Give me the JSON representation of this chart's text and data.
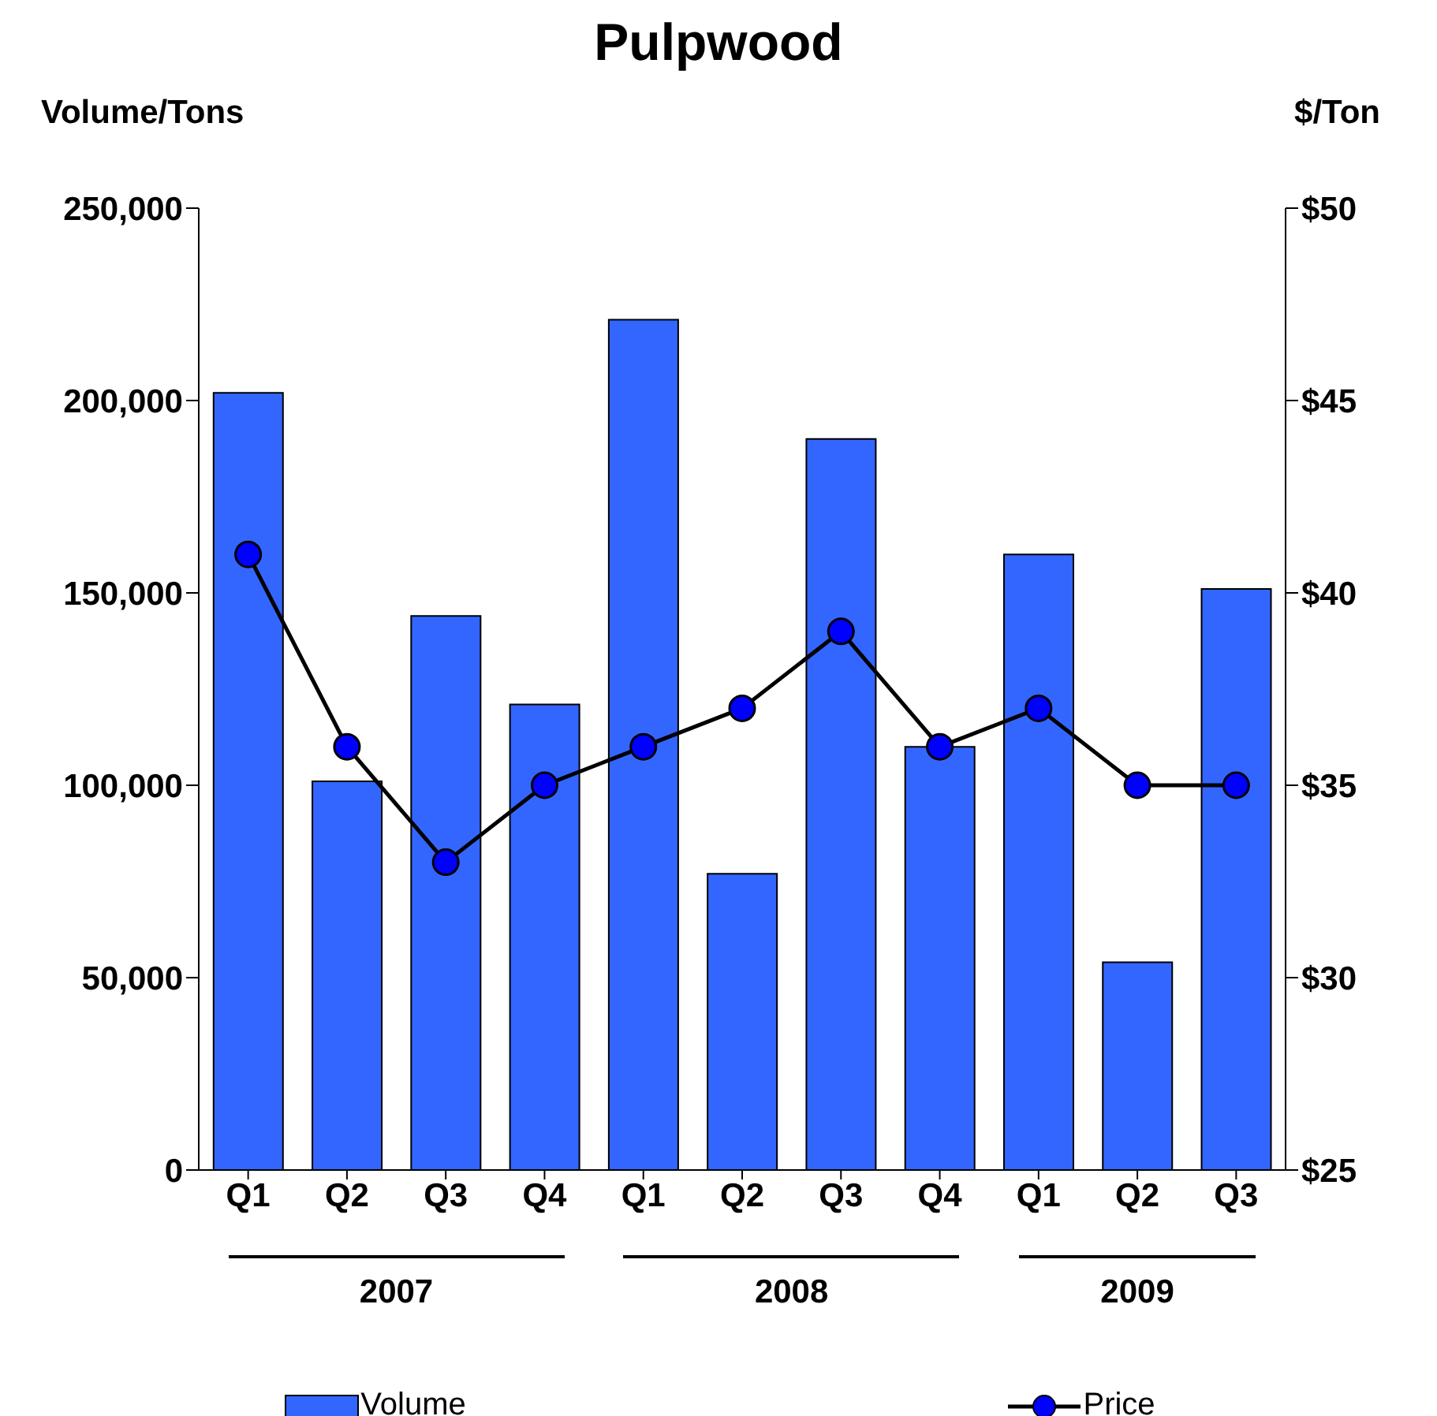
{
  "chart_data": {
    "type": "bar",
    "title": "Pulpwood",
    "ylabel": "Volume/Tons",
    "y2label": "$/Ton",
    "categories": [
      "Q1",
      "Q2",
      "Q3",
      "Q4",
      "Q1",
      "Q2",
      "Q3",
      "Q4",
      "Q1",
      "Q2",
      "Q3"
    ],
    "annotations": [
      "2007",
      "2008",
      "2009"
    ],
    "series": [
      {
        "name": "Volume",
        "color": "#3366ff",
        "values": [
          202000,
          101000,
          144000,
          121000,
          221000,
          77000,
          190000,
          110000,
          160000,
          54000,
          151000
        ]
      },
      {
        "name": "Price",
        "type": "line",
        "axis": "y2",
        "color": "#000000",
        "marker": "circle",
        "values": [
          41,
          36,
          33,
          35,
          36,
          37,
          39,
          36,
          37,
          35,
          35
        ]
      }
    ],
    "ylim": [
      0,
      250000
    ],
    "yticks": [
      {
        "value": 0,
        "label": "0"
      },
      {
        "value": 50000,
        "label": "50,000"
      },
      {
        "value": 100000,
        "label": "100,000"
      },
      {
        "value": 150000,
        "label": "150,000"
      },
      {
        "value": 200000,
        "label": "200,000"
      },
      {
        "value": 250000,
        "label": "250,000"
      }
    ],
    "y2lim": [
      25,
      50
    ],
    "y2ticks": [
      {
        "value": 25,
        "label": "$25"
      },
      {
        "value": 30,
        "label": "$30"
      },
      {
        "value": 35,
        "label": "$35"
      },
      {
        "value": 40,
        "label": "$40"
      },
      {
        "value": 45,
        "label": "$45"
      },
      {
        "value": 50,
        "label": "$50"
      }
    ],
    "legend": "bottom"
  }
}
